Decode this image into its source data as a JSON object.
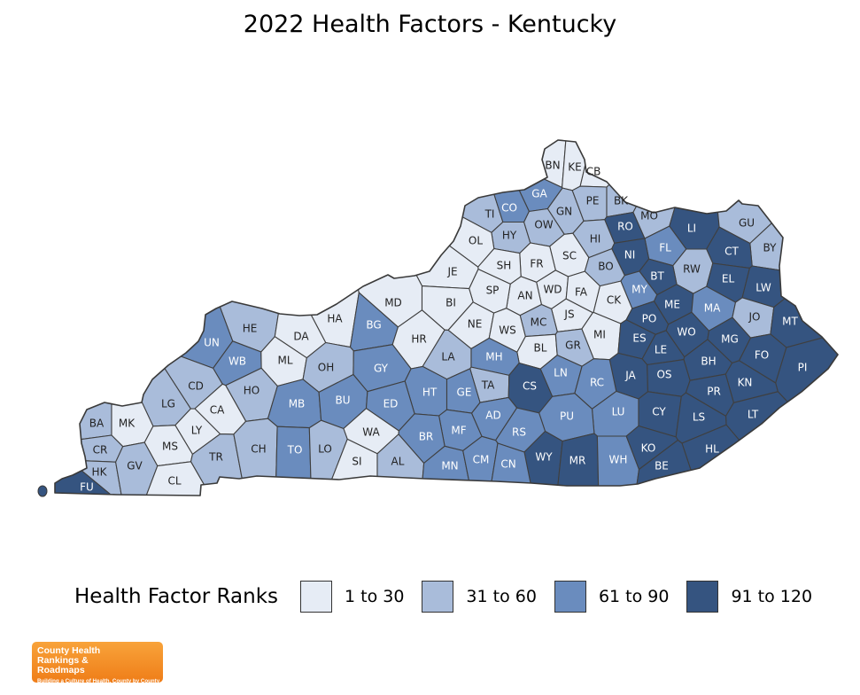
{
  "title": "2022 Health Factors - Kentucky",
  "legend": {
    "title": "Health Factor Ranks",
    "items": [
      {
        "label": "1 to 30",
        "color": "#e6ecf5"
      },
      {
        "label": "31 to 60",
        "color": "#a9bcda"
      },
      {
        "label": "61 to 90",
        "color": "#6a8cbe"
      },
      {
        "label": "91 to 120",
        "color": "#355480"
      }
    ]
  },
  "counties": [
    {
      "abbr": "BN",
      "bin": 1
    },
    {
      "abbr": "KE",
      "bin": 1
    },
    {
      "abbr": "CB",
      "bin": 1
    },
    {
      "abbr": "GA",
      "bin": 3
    },
    {
      "abbr": "TI",
      "bin": 2
    },
    {
      "abbr": "CO",
      "bin": 3
    },
    {
      "abbr": "GN",
      "bin": 2
    },
    {
      "abbr": "PE",
      "bin": 2
    },
    {
      "abbr": "BK",
      "bin": 2
    },
    {
      "abbr": "MO",
      "bin": 2
    },
    {
      "abbr": "LI",
      "bin": 4
    },
    {
      "abbr": "GU",
      "bin": 2
    },
    {
      "abbr": "HY",
      "bin": 2
    },
    {
      "abbr": "OW",
      "bin": 2
    },
    {
      "abbr": "RO",
      "bin": 4
    },
    {
      "abbr": "BY",
      "bin": 2
    },
    {
      "abbr": "OL",
      "bin": 1
    },
    {
      "abbr": "HI",
      "bin": 2
    },
    {
      "abbr": "FL",
      "bin": 3
    },
    {
      "abbr": "CT",
      "bin": 4
    },
    {
      "abbr": "NI",
      "bin": 4
    },
    {
      "abbr": "SC",
      "bin": 1
    },
    {
      "abbr": "FR",
      "bin": 1
    },
    {
      "abbr": "SH",
      "bin": 1
    },
    {
      "abbr": "BO",
      "bin": 2
    },
    {
      "abbr": "RW",
      "bin": 2
    },
    {
      "abbr": "JE",
      "bin": 1
    },
    {
      "abbr": "BT",
      "bin": 4
    },
    {
      "abbr": "EL",
      "bin": 4
    },
    {
      "abbr": "WD",
      "bin": 1
    },
    {
      "abbr": "FA",
      "bin": 1
    },
    {
      "abbr": "AN",
      "bin": 1
    },
    {
      "abbr": "SP",
      "bin": 1
    },
    {
      "abbr": "LW",
      "bin": 4
    },
    {
      "abbr": "MY",
      "bin": 3
    },
    {
      "abbr": "MD",
      "bin": 1
    },
    {
      "abbr": "CK",
      "bin": 1
    },
    {
      "abbr": "BI",
      "bin": 1
    },
    {
      "abbr": "ME",
      "bin": 4
    },
    {
      "abbr": "MA",
      "bin": 3
    },
    {
      "abbr": "JS",
      "bin": 1
    },
    {
      "abbr": "JO",
      "bin": 2
    },
    {
      "abbr": "HA",
      "bin": 1
    },
    {
      "abbr": "NE",
      "bin": 1
    },
    {
      "abbr": "PO",
      "bin": 4
    },
    {
      "abbr": "MT",
      "bin": 4
    },
    {
      "abbr": "HE",
      "bin": 2
    },
    {
      "abbr": "BG",
      "bin": 3
    },
    {
      "abbr": "MC",
      "bin": 2
    },
    {
      "abbr": "DA",
      "bin": 1
    },
    {
      "abbr": "WS",
      "bin": 1
    },
    {
      "abbr": "MI",
      "bin": 1
    },
    {
      "abbr": "ES",
      "bin": 4
    },
    {
      "abbr": "WO",
      "bin": 4
    },
    {
      "abbr": "MG",
      "bin": 4
    },
    {
      "abbr": "UN",
      "bin": 3
    },
    {
      "abbr": "HR",
      "bin": 1
    },
    {
      "abbr": "BL",
      "bin": 1
    },
    {
      "abbr": "GR",
      "bin": 2
    },
    {
      "abbr": "LE",
      "bin": 4
    },
    {
      "abbr": "FO",
      "bin": 4
    },
    {
      "abbr": "WB",
      "bin": 3
    },
    {
      "abbr": "ML",
      "bin": 1
    },
    {
      "abbr": "LA",
      "bin": 2
    },
    {
      "abbr": "MH",
      "bin": 3
    },
    {
      "abbr": "BH",
      "bin": 4
    },
    {
      "abbr": "PI",
      "bin": 4
    },
    {
      "abbr": "OH",
      "bin": 2
    },
    {
      "abbr": "GY",
      "bin": 3
    },
    {
      "abbr": "LN",
      "bin": 3
    },
    {
      "abbr": "JA",
      "bin": 4
    },
    {
      "abbr": "OS",
      "bin": 4
    },
    {
      "abbr": "CD",
      "bin": 2
    },
    {
      "abbr": "TA",
      "bin": 2
    },
    {
      "abbr": "KN",
      "bin": 4
    },
    {
      "abbr": "HO",
      "bin": 2
    },
    {
      "abbr": "CS",
      "bin": 4
    },
    {
      "abbr": "RC",
      "bin": 3
    },
    {
      "abbr": "PR",
      "bin": 4
    },
    {
      "abbr": "HT",
      "bin": 3
    },
    {
      "abbr": "GE",
      "bin": 3
    },
    {
      "abbr": "LG",
      "bin": 2
    },
    {
      "abbr": "MB",
      "bin": 3
    },
    {
      "abbr": "BU",
      "bin": 3
    },
    {
      "abbr": "ED",
      "bin": 3
    },
    {
      "abbr": "CA",
      "bin": 1
    },
    {
      "abbr": "AD",
      "bin": 3
    },
    {
      "abbr": "LU",
      "bin": 3
    },
    {
      "abbr": "CY",
      "bin": 4
    },
    {
      "abbr": "LT",
      "bin": 4
    },
    {
      "abbr": "PU",
      "bin": 3
    },
    {
      "abbr": "LS",
      "bin": 4
    },
    {
      "abbr": "BA",
      "bin": 2
    },
    {
      "abbr": "MK",
      "bin": 1
    },
    {
      "abbr": "LY",
      "bin": 1
    },
    {
      "abbr": "WA",
      "bin": 1
    },
    {
      "abbr": "MF",
      "bin": 3
    },
    {
      "abbr": "BR",
      "bin": 3
    },
    {
      "abbr": "RS",
      "bin": 3
    },
    {
      "abbr": "CR",
      "bin": 2
    },
    {
      "abbr": "MS",
      "bin": 1
    },
    {
      "abbr": "TR",
      "bin": 2
    },
    {
      "abbr": "CH",
      "bin": 2
    },
    {
      "abbr": "TO",
      "bin": 3
    },
    {
      "abbr": "LO",
      "bin": 2
    },
    {
      "abbr": "WY",
      "bin": 4
    },
    {
      "abbr": "MR",
      "bin": 4
    },
    {
      "abbr": "WH",
      "bin": 3
    },
    {
      "abbr": "KO",
      "bin": 4
    },
    {
      "abbr": "HL",
      "bin": 4
    },
    {
      "abbr": "HK",
      "bin": 2
    },
    {
      "abbr": "GV",
      "bin": 2
    },
    {
      "abbr": "SI",
      "bin": 1
    },
    {
      "abbr": "AL",
      "bin": 2
    },
    {
      "abbr": "MN",
      "bin": 3
    },
    {
      "abbr": "CM",
      "bin": 3
    },
    {
      "abbr": "CN",
      "bin": 3
    },
    {
      "abbr": "BE",
      "bin": 4
    },
    {
      "abbr": "CL",
      "bin": 1
    },
    {
      "abbr": "FU",
      "bin": 4
    }
  ],
  "logo": {
    "name": "County Health Rankings & Roadmaps",
    "tagline": "Building a Culture of Health, County by County"
  }
}
